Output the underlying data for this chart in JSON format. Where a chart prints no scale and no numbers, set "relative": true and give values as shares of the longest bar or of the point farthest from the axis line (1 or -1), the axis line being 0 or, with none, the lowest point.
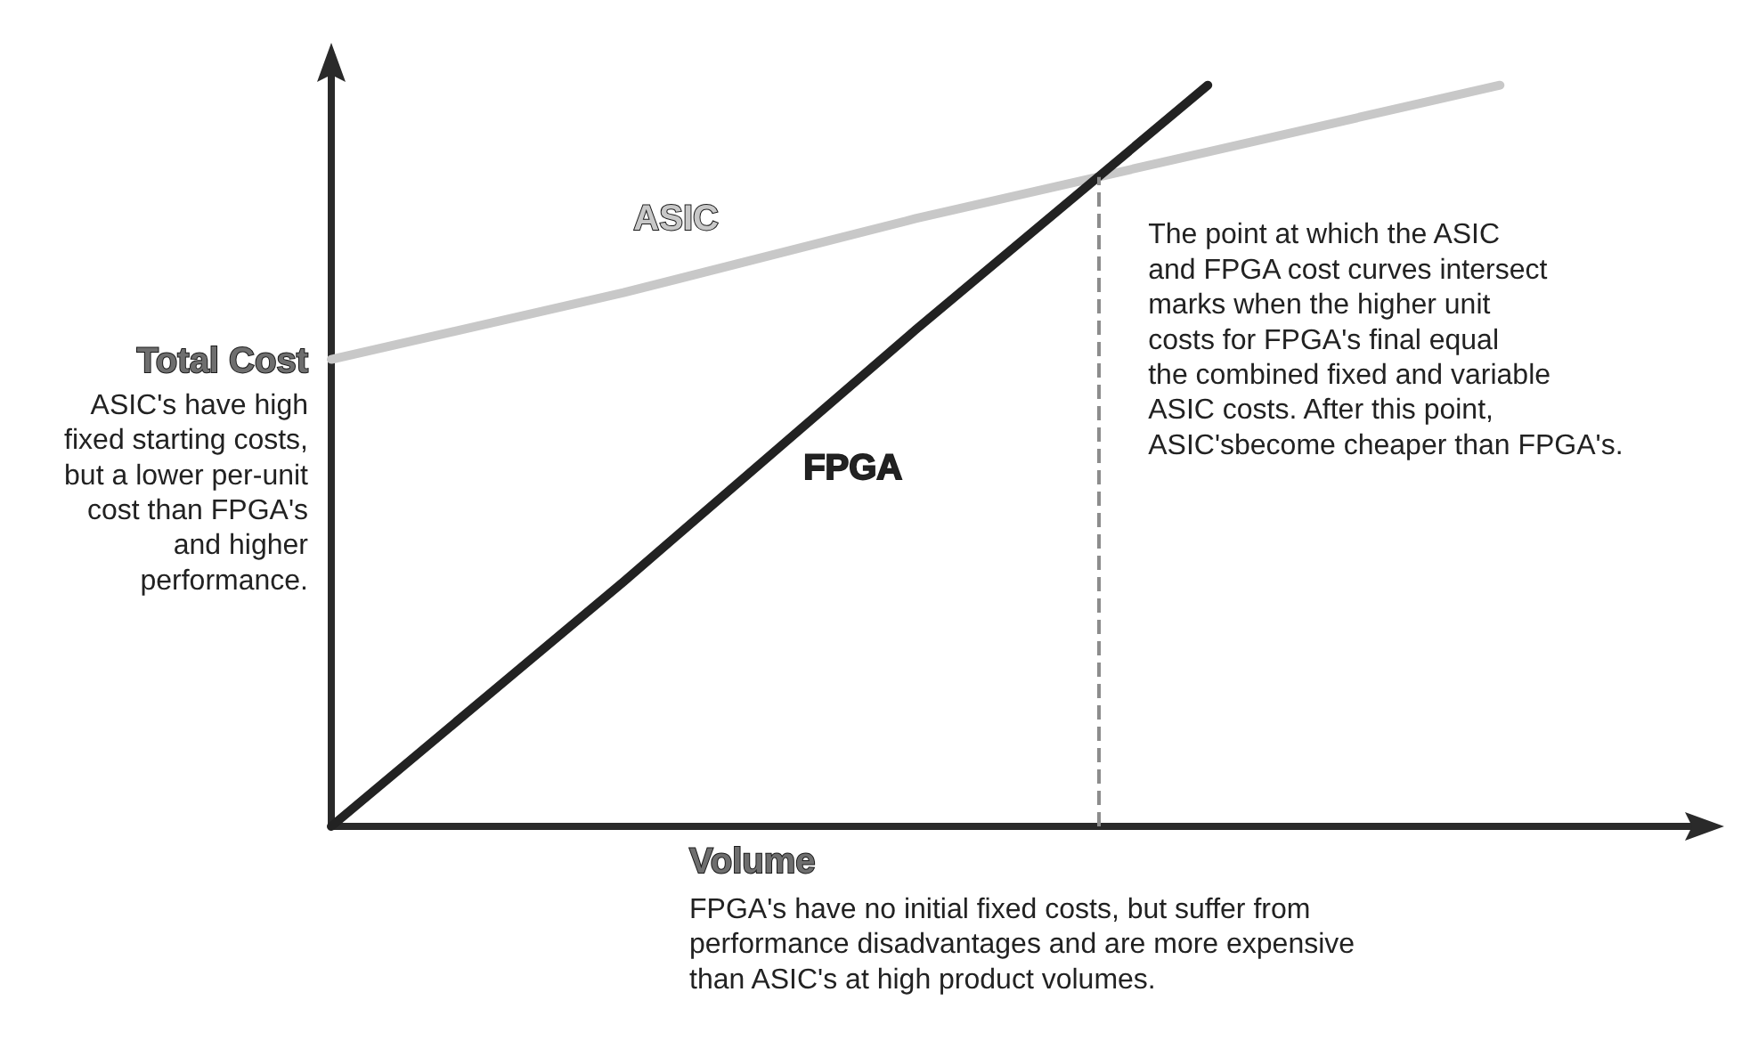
{
  "chart_data": {
    "type": "line",
    "relative": true,
    "ylabel": "Total Cost",
    "xlabel": "Volume",
    "categories": [
      null,
      null,
      null,
      null,
      null
    ],
    "series": [
      {
        "name": "ASIC",
        "color": "#c8c8c8",
        "values": [
          0.63,
          0.72,
          0.82,
          0.91,
          1
        ]
      },
      {
        "name": "FPGA",
        "color": "#222222",
        "values": [
          0,
          0.33,
          0.67,
          1,
          null
        ]
      }
    ],
    "annotations": [
      "ASIC's have high\nfixed starting costs,\nbut a lower per-unit\ncost than FPGA's\nand higher\nperformance.",
      "FPGA's have no initial fixed costs, but suffer from\nperformance disadvantages and are more expensive\nthan ASIC's at high product volumes.",
      "The point at which the ASIC\nand FPGA cost curves intersect\nmarks when the higher unit\ncosts for FPGA's final equal\nthe combined fixed and variable\nASIC costs. After this point,\nASIC'sbecome cheaper than FPGA's."
    ],
    "marker": "none",
    "line_style": "solid"
  }
}
